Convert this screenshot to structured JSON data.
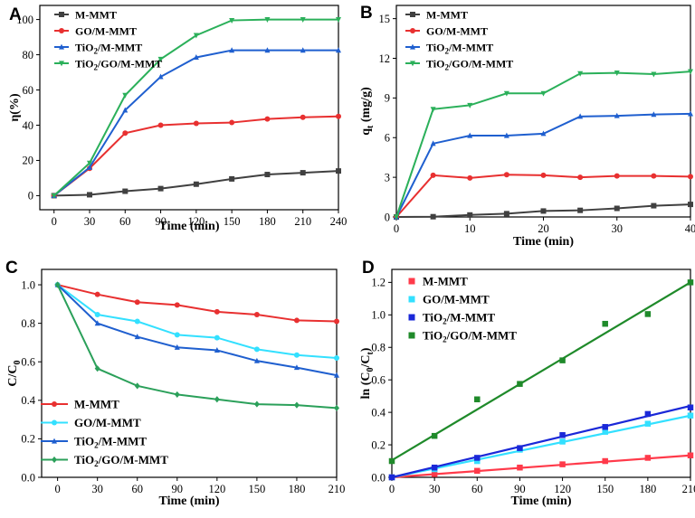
{
  "chart_data": [
    {
      "id": "A",
      "panel_label": "A",
      "type": "line",
      "xlabel": "Time (min)",
      "ylabel_main": "η(%)",
      "ylabel_sub": "",
      "ylabel_tail": "",
      "xlim": [
        -12,
        240
      ],
      "ylim": [
        -8,
        108
      ],
      "xticks": [
        0,
        30,
        60,
        90,
        120,
        150,
        180,
        210,
        240
      ],
      "yticks": [
        0,
        20,
        40,
        60,
        80,
        100
      ],
      "legend_position": "top-left",
      "x": [
        0,
        30,
        60,
        90,
        120,
        150,
        180,
        210,
        240
      ],
      "series": [
        {
          "name": "M-MMT",
          "label_main": "M-MMT",
          "label_sub": "",
          "label_tail": "",
          "color": "#404040",
          "marker": "square",
          "values": [
            0,
            0.5,
            2.5,
            4,
            6.5,
            9.5,
            12,
            13,
            14
          ]
        },
        {
          "name": "GO/M-MMT",
          "label_main": "GO/M-MMT",
          "label_sub": "",
          "label_tail": "",
          "color": "#e83030",
          "marker": "circle",
          "values": [
            0,
            15.5,
            35.5,
            40,
            41,
            41.5,
            43.5,
            44.5,
            45
          ]
        },
        {
          "name": "TiO2/M-MMT",
          "label_main": "TiO",
          "label_sub": "2",
          "label_tail": "/M-MMT",
          "color": "#1f5fcf",
          "marker": "triangle",
          "values": [
            0,
            16,
            48.5,
            67.5,
            78.5,
            82.5,
            82.5,
            82.5,
            82.5
          ]
        },
        {
          "name": "TiO2/GO/M-MMT",
          "label_main": "TiO",
          "label_sub": "2",
          "label_tail": "/GO/M-MMT",
          "color": "#2bb05a",
          "marker": "tri-down",
          "values": [
            0,
            18.5,
            57,
            77.5,
            91,
            99.5,
            100,
            100,
            100
          ]
        }
      ]
    },
    {
      "id": "B",
      "panel_label": "B",
      "type": "line",
      "xlabel": "Time (min)",
      "ylabel_main": "q",
      "ylabel_sub": "t",
      "ylabel_tail": " (mg/g)",
      "xlim": [
        0,
        40
      ],
      "ylim": [
        0,
        16
      ],
      "xticks": [
        0,
        10,
        20,
        30,
        40
      ],
      "yticks": [
        0,
        3,
        6,
        9,
        12,
        15
      ],
      "legend_position": "top-left",
      "x": [
        0,
        5,
        10,
        15,
        20,
        25,
        30,
        35,
        40
      ],
      "series": [
        {
          "name": "M-MMT",
          "label_main": "M-MMT",
          "label_sub": "",
          "label_tail": "",
          "color": "#404040",
          "marker": "square",
          "values": [
            0,
            0.02,
            0.15,
            0.25,
            0.45,
            0.5,
            0.65,
            0.85,
            0.95
          ]
        },
        {
          "name": "GO/M-MMT",
          "label_main": "GO/M-MMT",
          "label_sub": "",
          "label_tail": "",
          "color": "#e83030",
          "marker": "circle",
          "values": [
            0,
            3.15,
            2.95,
            3.2,
            3.15,
            3.0,
            3.1,
            3.1,
            3.05
          ]
        },
        {
          "name": "TiO2/M-MMT",
          "label_main": "TiO",
          "label_sub": "2",
          "label_tail": "/M-MMT",
          "color": "#1f5fcf",
          "marker": "triangle",
          "values": [
            0,
            5.55,
            6.15,
            6.15,
            6.3,
            7.6,
            7.65,
            7.75,
            7.8
          ]
        },
        {
          "name": "TiO2/GO/M-MMT",
          "label_main": "TiO",
          "label_sub": "2",
          "label_tail": "/GO/M-MMT",
          "color": "#2bb05a",
          "marker": "tri-down",
          "values": [
            0,
            8.15,
            8.45,
            9.35,
            9.35,
            10.85,
            10.9,
            10.8,
            11.0
          ]
        }
      ]
    },
    {
      "id": "C",
      "panel_label": "C",
      "type": "line",
      "xlabel": "Time (min)",
      "ylabel_main": "C/C",
      "ylabel_sub": "0",
      "ylabel_tail": "",
      "xlim": [
        -12,
        210
      ],
      "ylim": [
        0,
        1.08
      ],
      "xticks": [
        0,
        30,
        60,
        90,
        120,
        150,
        180,
        210
      ],
      "yticks": [
        0.0,
        0.2,
        0.4,
        0.6,
        0.8,
        1.0
      ],
      "legend_position": "bottom-left",
      "x": [
        0,
        30,
        60,
        90,
        120,
        150,
        180,
        210
      ],
      "series": [
        {
          "name": "M-MMT",
          "label_main": "M-MMT",
          "label_sub": "",
          "label_tail": "",
          "color": "#e83030",
          "marker": "circle",
          "values": [
            1.0,
            0.95,
            0.91,
            0.895,
            0.86,
            0.845,
            0.815,
            0.81
          ]
        },
        {
          "name": "GO/M-MMT",
          "label_main": "GO/M-MMT",
          "label_sub": "",
          "label_tail": "",
          "color": "#33e0ff",
          "marker": "circle",
          "values": [
            1.0,
            0.845,
            0.81,
            0.74,
            0.725,
            0.665,
            0.635,
            0.62
          ]
        },
        {
          "name": "TiO2/M-MMT",
          "label_main": "TiO",
          "label_sub": "2",
          "label_tail": "/M-MMT",
          "color": "#1f5fcf",
          "marker": "triangle",
          "values": [
            1.0,
            0.8,
            0.73,
            0.675,
            0.66,
            0.605,
            0.57,
            0.53
          ]
        },
        {
          "name": "TiO2/GO/M-MMT",
          "label_main": "TiO",
          "label_sub": "2",
          "label_tail": "/GO/M-MMT",
          "color": "#2ba05a",
          "marker": "diamond",
          "values": [
            1.0,
            0.565,
            0.475,
            0.43,
            0.405,
            0.38,
            0.375,
            0.36
          ]
        }
      ]
    },
    {
      "id": "D",
      "panel_label": "D",
      "type": "scatter",
      "xlabel": "Time (min)",
      "ylabel_main": "ln (C",
      "ylabel_sub": "0",
      "ylabel_tail": "/C",
      "ylabel_sub2": "t",
      "ylabel_end": ")",
      "xlim": [
        0,
        210
      ],
      "ylim": [
        0,
        1.28
      ],
      "xticks": [
        0,
        30,
        60,
        90,
        120,
        150,
        180,
        210
      ],
      "yticks": [
        0.0,
        0.2,
        0.4,
        0.6,
        0.8,
        1.0,
        1.2
      ],
      "legend_position": "top-left",
      "x": [
        0,
        30,
        60,
        90,
        120,
        150,
        180,
        210
      ],
      "series": [
        {
          "name": "M-MMT",
          "label_main": "M-MMT",
          "label_sub": "",
          "label_tail": "",
          "color": "#ff3a4a",
          "marker": "square",
          "values": [
            0,
            0.02,
            0.04,
            0.06,
            0.08,
            0.1,
            0.12,
            0.135
          ],
          "fit": [
            0,
            0.135
          ]
        },
        {
          "name": "GO/M-MMT",
          "label_main": "GO/M-MMT",
          "label_sub": "",
          "label_tail": "",
          "color": "#33e0ff",
          "marker": "square",
          "values": [
            0,
            0.05,
            0.1,
            0.17,
            0.22,
            0.28,
            0.33,
            0.38
          ],
          "fit": [
            0,
            0.38
          ]
        },
        {
          "name": "TiO2/M-MMT",
          "label_main": "TiO",
          "label_sub": "2",
          "label_tail": "/M-MMT",
          "color": "#1a28d8",
          "marker": "square",
          "values": [
            0,
            0.06,
            0.12,
            0.18,
            0.26,
            0.31,
            0.39,
            0.43
          ],
          "fit": [
            0,
            0.44
          ]
        },
        {
          "name": "TiO2/GO/M-MMT",
          "label_main": "TiO",
          "label_sub": "2",
          "label_tail": "/GO/M-MMT",
          "color": "#1f8a2a",
          "marker": "square",
          "values": [
            0.1,
            0.255,
            0.48,
            0.575,
            0.72,
            0.945,
            1.005,
            1.2
          ],
          "fit": [
            0.105,
            1.2
          ]
        }
      ]
    }
  ]
}
